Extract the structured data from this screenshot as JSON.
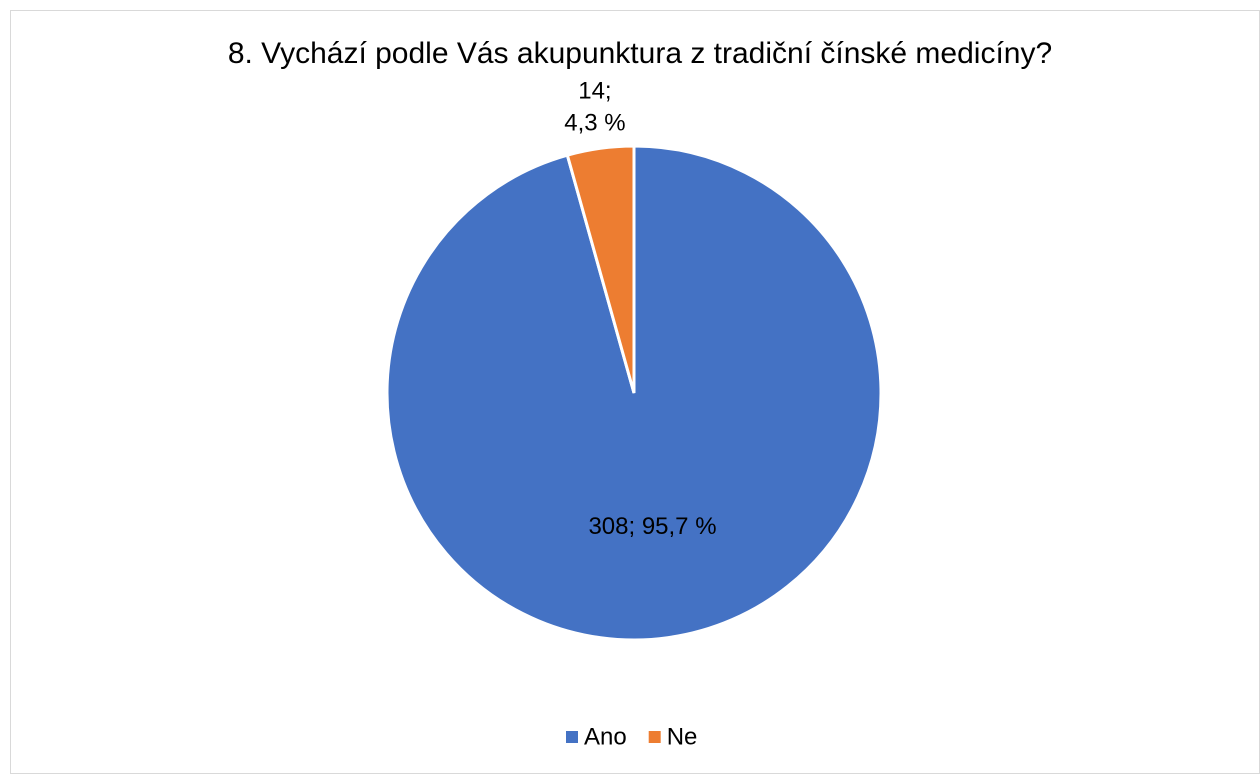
{
  "chart_data": {
    "type": "pie",
    "title": "8. Vychází podle Vás akupunktura z tradiční čínské medicíny?",
    "categories": [
      "Ano",
      "Ne"
    ],
    "values": [
      308,
      14
    ],
    "value_labels": [
      "308; 95,7 %",
      "14;\n4,3 %"
    ],
    "colors": [
      "#4472c4",
      "#ed7d31"
    ],
    "legend": "bottom"
  }
}
